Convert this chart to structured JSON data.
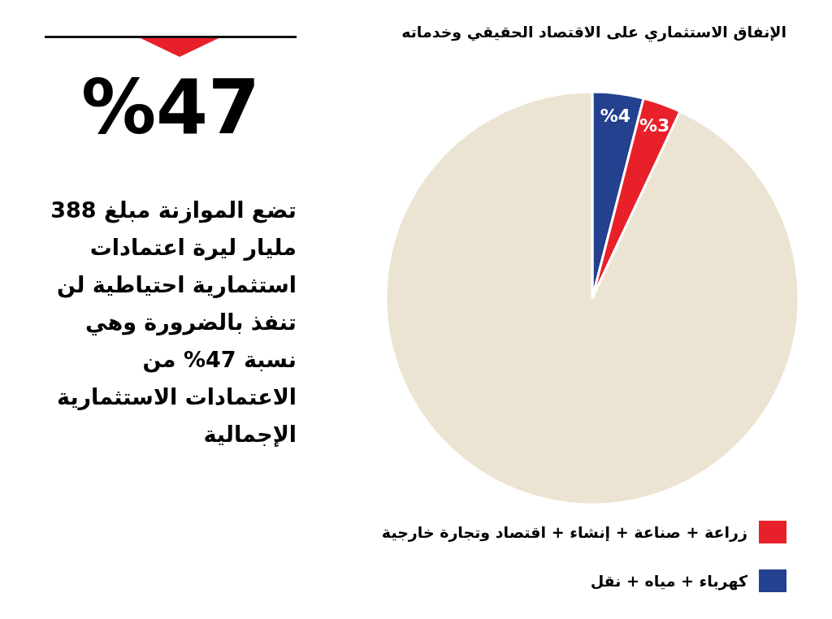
{
  "chart_data": [
    {
      "type": "pie",
      "title": "الإنفاق الاستثماري على الاقتصاد الحقيقي وخدماته",
      "categories": [
        "كهرباء + مياه + نقل",
        "زراعة + صناعة + إنشاء + اقتصاد وتجارة خارجية",
        null
      ],
      "values": [
        4,
        3,
        93
      ],
      "colors": [
        "#24418f",
        "#e8202a",
        "#ece4d2"
      ],
      "value_labels": [
        "%4",
        "%3",
        null
      ],
      "legend": "bottom"
    },
    {
      "type": "other",
      "title": "%47",
      "annotations": [
        "تضع الموازنة مبلغ 388 مليار ليرة اعتمادات استثمارية احتياطية لن تنفذ بالضرورة وهي نسبة 47% من الاعتمادات الاستثمارية الإجمالية"
      ]
    }
  ]
}
